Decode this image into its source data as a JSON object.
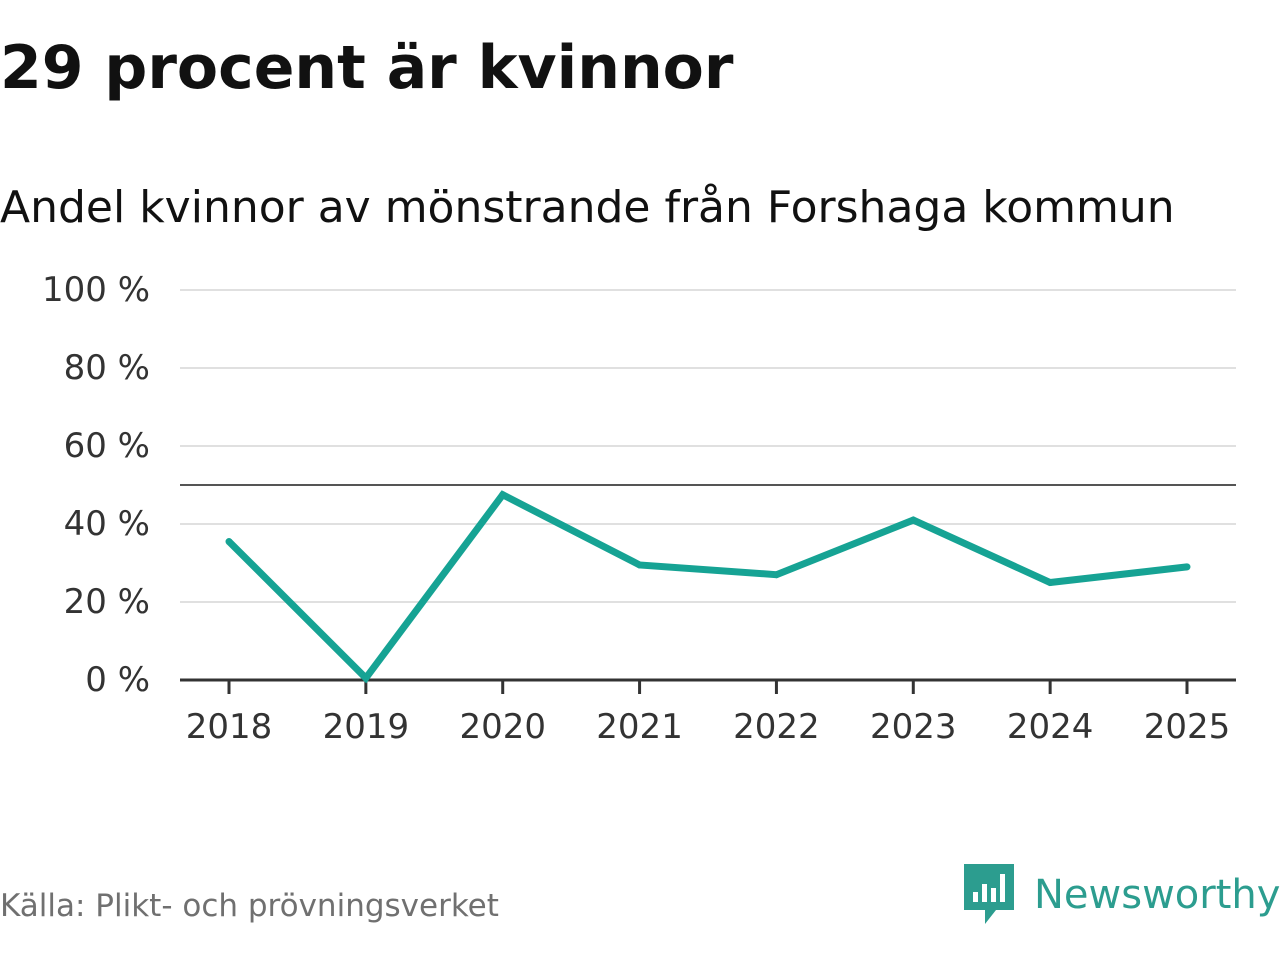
{
  "chart_data": {
    "type": "line",
    "title": "29 procent är kvinnor",
    "subtitle": "Andel kvinnor av mönstrande från Forshaga kommun",
    "categories": [
      "2018",
      "2019",
      "2020",
      "2021",
      "2022",
      "2023",
      "2024",
      "2025"
    ],
    "series": [
      {
        "name": "Andel kvinnor",
        "values": [
          35.5,
          0.5,
          47.5,
          29.5,
          27,
          41,
          25,
          29
        ],
        "color": "#16a394"
      }
    ],
    "yticks": [
      0,
      20,
      40,
      60,
      80,
      100
    ],
    "ytick_labels": [
      "0 %",
      "20 %",
      "40 %",
      "60 %",
      "80 %",
      "100 %"
    ],
    "ylim": [
      0,
      100
    ],
    "reference_line": 50,
    "grid": true,
    "xlabel": "",
    "ylabel": ""
  },
  "source": "Källa: Plikt- och prövningsverket",
  "brand": {
    "name": "Newsworthy",
    "icon": "newsworthy-logo-icon",
    "color": "#2c9d8f"
  }
}
